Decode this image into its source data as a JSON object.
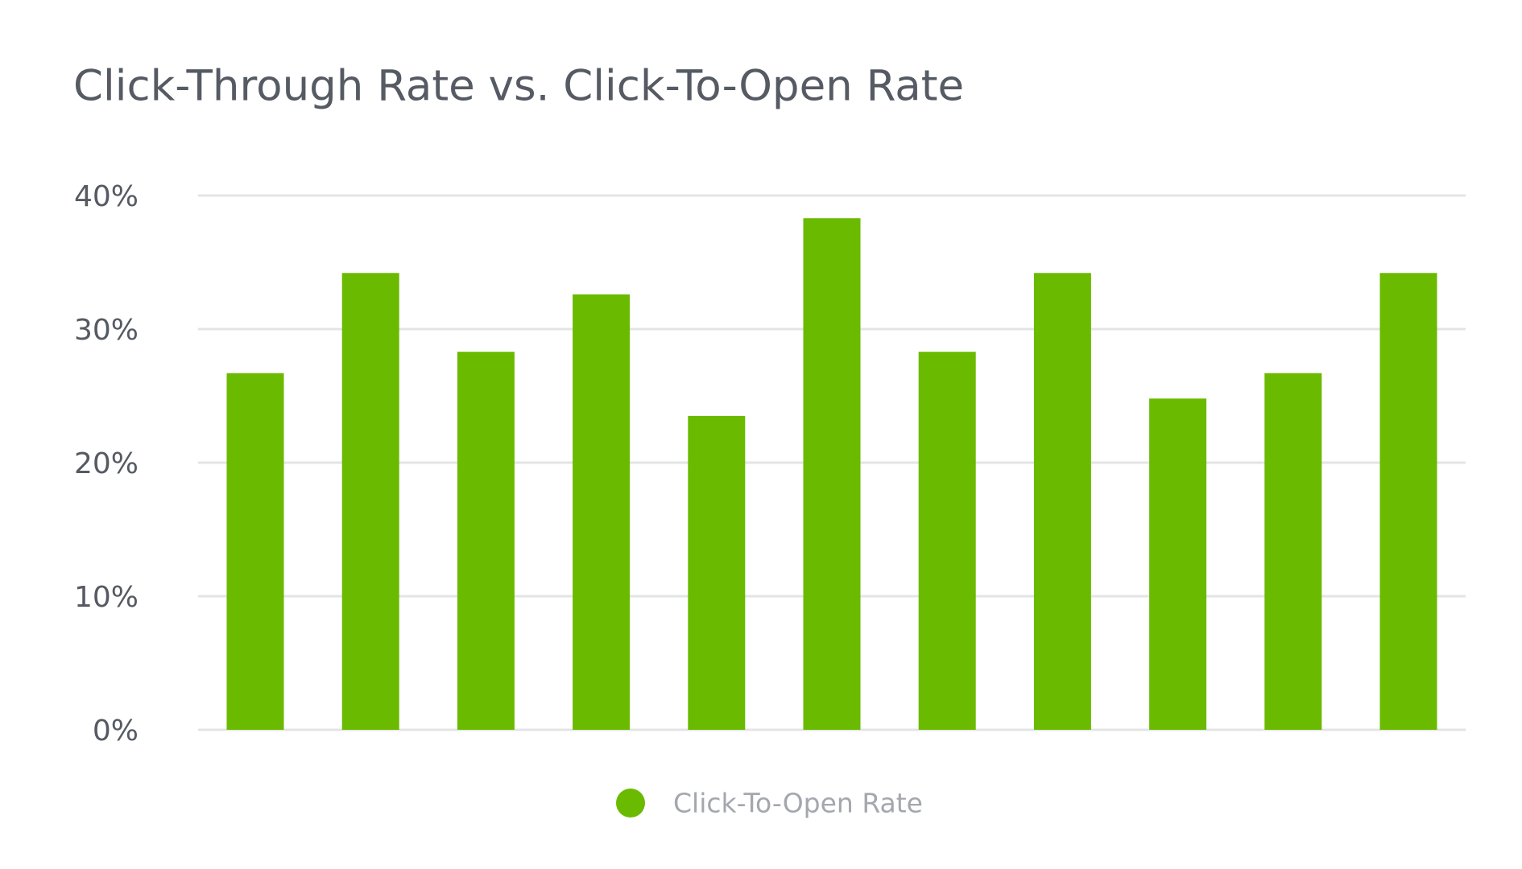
{
  "chart_data": {
    "type": "bar",
    "title": "Click-Through Rate vs. Click-To-Open Rate",
    "categories": [
      null,
      null,
      null,
      null,
      null,
      null,
      null,
      null,
      null,
      null,
      null
    ],
    "series": [
      {
        "name": "Click-To-Open Rate",
        "color": "#6aba00",
        "values": [
          26.7,
          34.2,
          28.3,
          32.6,
          23.5,
          38.3,
          28.3,
          34.2,
          24.8,
          26.7,
          34.2
        ]
      }
    ],
    "ylim": [
      0,
      40
    ],
    "yticks": [
      {
        "value": 0,
        "label": "0%"
      },
      {
        "value": 10,
        "label": "10%"
      },
      {
        "value": 20,
        "label": "20%"
      },
      {
        "value": 30,
        "label": "30%"
      },
      {
        "value": 40,
        "label": "40%"
      }
    ],
    "grid": true,
    "legend": "bottom"
  }
}
